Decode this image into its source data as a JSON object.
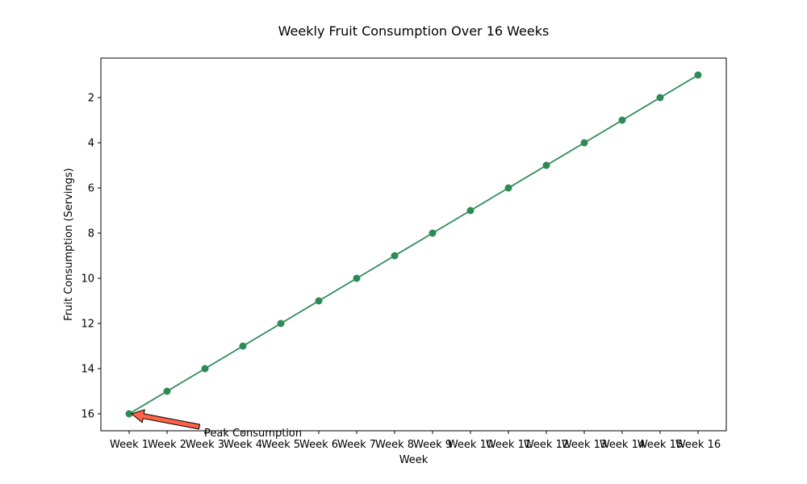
{
  "chart_data": {
    "type": "line",
    "title": "Weekly Fruit Consumption Over 16 Weeks",
    "xlabel": "Week",
    "ylabel": "Fruit Consumption (Servings)",
    "categories": [
      "Week 1",
      "Week 2",
      "Week 3",
      "Week 4",
      "Week 5",
      "Week 6",
      "Week 7",
      "Week 8",
      "Week 9",
      "Week 10",
      "Week 11",
      "Week 12",
      "Week 13",
      "Week 14",
      "Week 15",
      "Week 16"
    ],
    "series": [
      {
        "values": [
          16,
          15,
          14,
          13,
          12,
          11,
          10,
          9,
          8,
          7,
          6,
          5,
          4,
          3,
          2,
          1
        ],
        "color": "#2e8b57",
        "marker": "circle"
      }
    ],
    "y_axis": {
      "inverted": true,
      "range": [
        16.75,
        0.25
      ],
      "ticks": [
        2,
        4,
        6,
        8,
        10,
        12,
        14,
        16
      ]
    },
    "grid": false,
    "annotation": {
      "text": "Peak Consumption",
      "point": {
        "category": "Week 1",
        "value": 16
      },
      "arrow_color": "#ff6347"
    }
  }
}
